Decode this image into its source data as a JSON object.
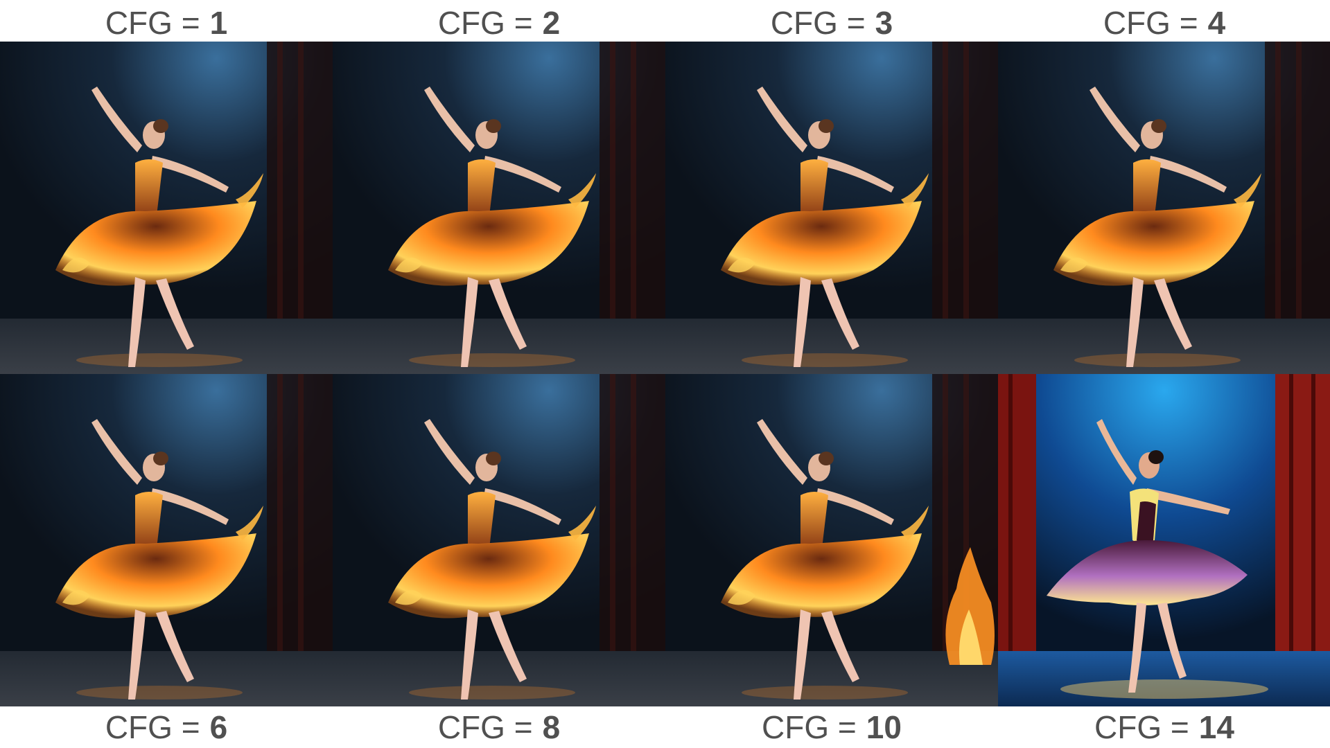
{
  "labels_top": [
    {
      "prefix": "CFG =",
      "value": "1"
    },
    {
      "prefix": "CFG =",
      "value": "2"
    },
    {
      "prefix": "CFG =",
      "value": "3"
    },
    {
      "prefix": "CFG =",
      "value": "4"
    }
  ],
  "labels_bottom": [
    {
      "prefix": "CFG =",
      "value": "6"
    },
    {
      "prefix": "CFG =",
      "value": "8"
    },
    {
      "prefix": "CFG =",
      "value": "10"
    },
    {
      "prefix": "CFG =",
      "value": "14"
    }
  ],
  "colors": {
    "label_text": "#505050",
    "stage_dark": "#0e1620",
    "spotlight": "#3a6f9c",
    "flame_orange": "#ff8a1e",
    "flame_yellow": "#ffd25a",
    "curtain_red": "#8a1a14",
    "cfg14_blue": "#1460b4"
  }
}
